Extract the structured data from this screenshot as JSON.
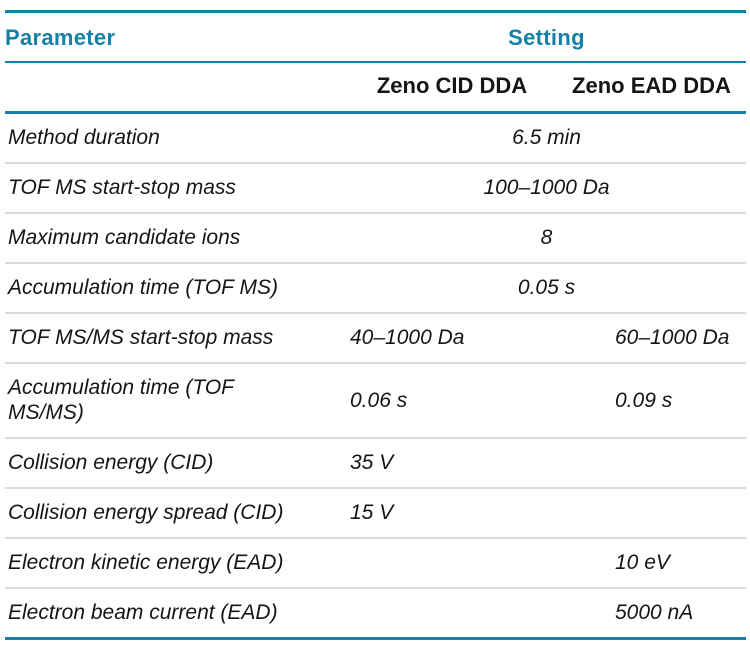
{
  "table": {
    "columns": {
      "parameter_header": "Parameter",
      "setting_header": "Setting",
      "sub_headers": [
        "Zeno CID DDA",
        "Zeno EAD DDA"
      ]
    },
    "rows": [
      {
        "parameter": "Method duration",
        "shared": "6.5 min"
      },
      {
        "parameter": "TOF MS start-stop mass",
        "shared": "100–1000 Da"
      },
      {
        "parameter": "Maximum candidate ions",
        "shared": "8"
      },
      {
        "parameter": "Accumulation time (TOF MS)",
        "shared": "0.05 s"
      },
      {
        "parameter": "TOF MS/MS start-stop mass",
        "cid": "40–1000 Da",
        "ead": "60–1000 Da"
      },
      {
        "parameter": "Accumulation time (TOF MS/MS)",
        "cid": "0.06 s",
        "ead": "0.09 s"
      },
      {
        "parameter": "Collision energy (CID)",
        "cid": "35 V",
        "ead": ""
      },
      {
        "parameter": "Collision energy spread (CID)",
        "cid": "15 V",
        "ead": ""
      },
      {
        "parameter": "Electron kinetic energy (EAD)",
        "cid": "",
        "ead": "10 eV"
      },
      {
        "parameter": "Electron beam current (EAD)",
        "cid": "",
        "ead": "5000 nA"
      }
    ]
  },
  "colors": {
    "accent_teal": "#1580A8",
    "separator_gray": "#DBDBDB",
    "text_black": "#151515"
  }
}
